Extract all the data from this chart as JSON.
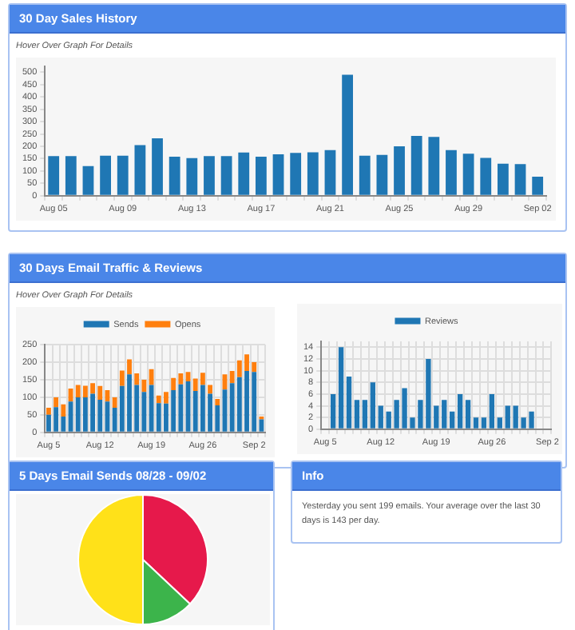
{
  "chart_data": [
    {
      "type": "bar",
      "title": "30 Day Sales History",
      "subtitle": "Hover Over Graph For Details",
      "categories": [
        "Aug 05",
        null,
        null,
        null,
        "Aug 09",
        null,
        null,
        null,
        "Aug 13",
        null,
        null,
        null,
        "Aug 17",
        null,
        null,
        null,
        "Aug 21",
        null,
        null,
        null,
        "Aug 25",
        null,
        null,
        null,
        "Aug 29",
        null,
        null,
        null,
        "Sep 02"
      ],
      "series": [
        {
          "color": "#1f77b4",
          "values": [
            160,
            160,
            120,
            162,
            162,
            205,
            232,
            158,
            152,
            160,
            160,
            175,
            158,
            168,
            173,
            176,
            185,
            490,
            162,
            165,
            200,
            242,
            238,
            185,
            170,
            153,
            130,
            128,
            77
          ]
        }
      ],
      "ylim": [
        0,
        525
      ],
      "yticks": [
        0,
        50,
        100,
        150,
        200,
        250,
        300,
        350,
        400,
        450,
        500
      ],
      "grid": false
    },
    {
      "type": "bar",
      "title": "30 Days Email Traffic & Reviews",
      "subtitle": "Hover Over Graph For Details",
      "categories": [
        "Aug 5",
        null,
        null,
        null,
        null,
        null,
        null,
        "Aug 12",
        null,
        null,
        null,
        null,
        null,
        null,
        "Aug 19",
        null,
        null,
        null,
        null,
        null,
        null,
        "Aug 26",
        null,
        null,
        null,
        null,
        null,
        null,
        "Sep 2",
        null
      ],
      "series": [
        {
          "name": "Sends",
          "color": "#1f77b4",
          "values": [
            50,
            72,
            45,
            88,
            100,
            100,
            110,
            93,
            88,
            70,
            132,
            165,
            135,
            115,
            135,
            83,
            82,
            120,
            137,
            145,
            118,
            135,
            110,
            77,
            122,
            140,
            157,
            175,
            172,
            37
          ]
        },
        {
          "name": "Opens",
          "color": "#ff7f0e",
          "values": [
            20,
            28,
            35,
            37,
            35,
            33,
            30,
            39,
            32,
            30,
            44,
            43,
            33,
            35,
            45,
            22,
            33,
            35,
            31,
            27,
            35,
            35,
            25,
            18,
            43,
            35,
            48,
            47,
            28,
            8
          ]
        }
      ],
      "stacked": true,
      "ylim": [
        0,
        250
      ],
      "yticks": [
        0,
        50,
        100,
        150,
        200,
        250
      ],
      "grid": true,
      "legend": "top"
    },
    {
      "type": "bar",
      "categories": [
        "Aug 5",
        null,
        null,
        null,
        null,
        null,
        null,
        "Aug 12",
        null,
        null,
        null,
        null,
        null,
        null,
        "Aug 19",
        null,
        null,
        null,
        null,
        null,
        null,
        "Aug 26",
        null,
        null,
        null,
        null,
        null,
        null,
        "Sep 2"
      ],
      "series": [
        {
          "name": "Reviews",
          "color": "#1f77b4",
          "values": [
            null,
            6,
            14,
            9,
            5,
            5,
            8,
            4,
            3,
            5,
            7,
            2,
            5,
            12,
            4,
            5,
            3,
            6,
            5,
            2,
            2,
            6,
            2,
            4,
            4,
            2,
            3,
            null,
            null
          ]
        }
      ],
      "ylim": [
        0,
        15
      ],
      "yticks": [
        0,
        2,
        4,
        6,
        8,
        10,
        12,
        14
      ],
      "grid": true,
      "legend": "top"
    },
    {
      "type": "pie",
      "title": "5 Days Email Sends 08/28 - 09/02",
      "categories": [
        null,
        null,
        null
      ],
      "values": [
        37,
        13,
        50
      ],
      "colors": [
        "#e6194b",
        "#3cb44b",
        "#ffe119"
      ]
    },
    {
      "type": "other",
      "title": "Info",
      "annotations": [
        "Yesterday you sent 199 emails. Your average over the last 30 days is 143 per day."
      ]
    }
  ]
}
